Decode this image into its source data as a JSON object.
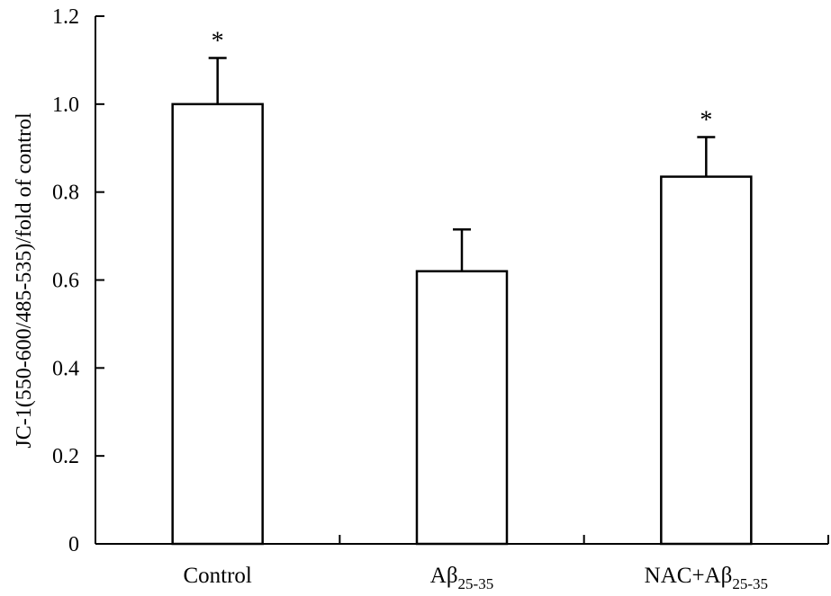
{
  "chart_data": {
    "type": "bar",
    "categories": [
      {
        "main": "Control",
        "sub": ""
      },
      {
        "main": "Aβ",
        "sub": "25-35"
      },
      {
        "main": "NAC+Aβ",
        "sub": "25-35"
      }
    ],
    "values": [
      1.0,
      0.62,
      0.835
    ],
    "errors": [
      0.105,
      0.095,
      0.09
    ],
    "significance": [
      "*",
      "",
      "*"
    ],
    "ylabel": "JC-1(550-600/485-535)/fold of control",
    "xlabel": "",
    "ylim": [
      0,
      1.2
    ],
    "yticks": [
      0,
      0.2,
      0.4,
      0.6,
      0.8,
      1.0,
      1.2
    ],
    "ytick_labels": [
      "0",
      "0.2",
      "0.4",
      "0.6",
      "0.8",
      "1.0",
      "1.2"
    ],
    "grid": false,
    "legend": "none",
    "bar_fill": "#ffffff",
    "bar_edge": "#000000"
  }
}
